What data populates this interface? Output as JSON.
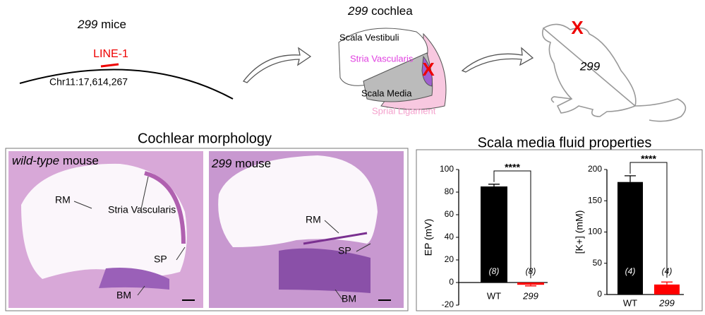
{
  "schematic": {
    "mice_strain": "299",
    "mice_suffix": " mice",
    "insertion": "LINE-1",
    "locus": "Chr11:17,614,267",
    "cochlea_strain": "299",
    "cochlea_suffix": " cochlea",
    "scala_vestibuli": "Scala Vestibuli",
    "stria_vascularis": "Stria Vascularis",
    "scala_media": "Scala Media",
    "spiral_ligament": "Sprial Ligament",
    "cochlea_mark": "X",
    "mouse_mark": "X",
    "mouse_label": "299"
  },
  "morphology": {
    "title": "Cochlear morphology",
    "wild_type": {
      "strain": "wild-type",
      "suffix": " mouse",
      "labels": [
        "RM",
        "Stria Vascularis",
        "SP",
        "BM"
      ]
    },
    "mutant": {
      "strain": "299",
      "suffix": " mouse",
      "labels": [
        "RM",
        "SP",
        "BM"
      ]
    }
  },
  "fluid": {
    "title": "Scala media fluid properties"
  },
  "chart_data": [
    {
      "type": "bar",
      "ylabel": "EP (mV)",
      "categories": [
        "WT",
        "299"
      ],
      "values": [
        85,
        -2
      ],
      "errors": [
        2,
        1
      ],
      "colors": [
        "#000000",
        "#ff0000"
      ],
      "n_labels": [
        "(8)",
        "(8)"
      ],
      "significance": "****",
      "ylim": [
        -20,
        100
      ],
      "yticks": [
        -20,
        0,
        20,
        40,
        60,
        80,
        100
      ]
    },
    {
      "type": "bar",
      "ylabel": "[K+] (mM)",
      "categories": [
        "WT",
        "299"
      ],
      "values": [
        180,
        16
      ],
      "errors": [
        10,
        4
      ],
      "colors": [
        "#000000",
        "#ff0000"
      ],
      "n_labels": [
        "(4)",
        "(4)"
      ],
      "significance": "****",
      "ylim": [
        0,
        200
      ],
      "yticks": [
        0,
        50,
        100,
        150,
        200
      ]
    }
  ]
}
